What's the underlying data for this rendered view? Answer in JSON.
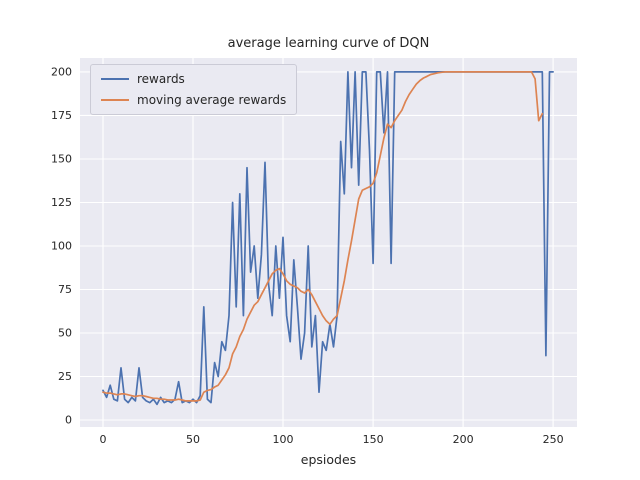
{
  "figure": {
    "title": "average learning curve of DQN",
    "xlabel": "epsiodes",
    "background": "#ffffff",
    "axes_background": "#eaeaf2",
    "grid_color": "#ffffff"
  },
  "legend": {
    "items": [
      {
        "label": "rewards",
        "color": "#4c72b0"
      },
      {
        "label": "moving average rewards",
        "color": "#dd8452"
      }
    ]
  },
  "chart_data": {
    "type": "line",
    "title": "average learning curve of DQN",
    "xlabel": "epsiodes",
    "ylabel": "",
    "grid": true,
    "legend_position": "upper left",
    "x_ticks": [
      0,
      50,
      100,
      150,
      200,
      250
    ],
    "y_ticks": [
      0,
      25,
      50,
      75,
      100,
      125,
      150,
      175,
      200
    ],
    "xlim": [
      -12.8,
      263.3
    ],
    "ylim": [
      -4,
      208
    ],
    "x": [
      0,
      2,
      4,
      6,
      8,
      10,
      12,
      14,
      16,
      18,
      20,
      22,
      24,
      26,
      28,
      30,
      32,
      34,
      36,
      38,
      40,
      42,
      44,
      46,
      48,
      50,
      52,
      54,
      56,
      58,
      60,
      62,
      64,
      66,
      68,
      70,
      72,
      74,
      76,
      78,
      80,
      82,
      84,
      86,
      88,
      90,
      92,
      94,
      96,
      98,
      100,
      102,
      104,
      106,
      108,
      110,
      112,
      114,
      116,
      118,
      120,
      122,
      124,
      126,
      128,
      130,
      132,
      134,
      136,
      138,
      140,
      142,
      144,
      146,
      148,
      150,
      152,
      154,
      156,
      158,
      160,
      162,
      164,
      166,
      168,
      170,
      172,
      174,
      176,
      178,
      180,
      182,
      184,
      186,
      188,
      190,
      192,
      194,
      196,
      198,
      200,
      202,
      204,
      206,
      208,
      210,
      212,
      214,
      216,
      218,
      220,
      222,
      224,
      226,
      228,
      230,
      232,
      234,
      236,
      238,
      240,
      242,
      244,
      246,
      248,
      250
    ],
    "series": [
      {
        "name": "rewards",
        "color": "#4c72b0",
        "values": [
          17,
          13,
          20,
          12,
          11,
          30,
          12,
          10,
          13,
          11,
          30,
          13,
          11,
          10,
          12,
          9,
          13,
          10,
          11,
          10,
          12,
          22,
          10,
          11,
          10,
          12,
          10,
          14,
          65,
          12,
          10,
          33,
          25,
          45,
          40,
          60,
          125,
          65,
          130,
          60,
          145,
          85,
          100,
          70,
          95,
          148,
          78,
          60,
          100,
          70,
          105,
          60,
          45,
          92,
          65,
          35,
          50,
          100,
          42,
          60,
          16,
          45,
          40,
          55,
          42,
          60,
          160,
          130,
          200,
          145,
          200,
          135,
          200,
          200,
          155,
          90,
          200,
          200,
          165,
          200,
          90,
          200,
          200,
          200,
          200,
          200,
          200,
          200,
          200,
          200,
          200,
          200,
          200,
          200,
          200,
          200,
          200,
          200,
          200,
          200,
          200,
          200,
          200,
          200,
          200,
          200,
          200,
          200,
          200,
          200,
          200,
          200,
          200,
          200,
          200,
          200,
          200,
          200,
          200,
          200,
          200,
          200,
          200,
          37,
          200,
          200
        ]
      },
      {
        "name": "moving average rewards",
        "color": "#dd8452",
        "values": [
          16,
          15.5,
          15.5,
          15,
          14.5,
          15,
          15,
          14.5,
          14,
          13.5,
          14,
          14,
          13.5,
          13,
          12.5,
          12.5,
          12,
          12,
          11.5,
          11.5,
          11.5,
          12,
          11.5,
          11,
          11,
          11,
          11,
          11.5,
          16,
          17,
          17.5,
          19,
          20,
          23,
          26,
          30,
          38,
          42,
          48,
          52,
          58,
          62,
          66,
          68,
          72,
          76,
          80,
          84,
          86,
          87,
          84,
          80,
          78,
          77,
          76,
          74,
          73,
          75,
          72,
          68,
          64,
          60,
          57,
          55,
          58,
          60,
          70,
          80,
          92,
          103,
          115,
          127,
          132,
          133,
          134,
          136,
          142,
          152,
          162,
          170,
          168,
          172,
          175,
          178,
          183,
          187,
          190,
          193,
          195,
          196.5,
          197.5,
          198.5,
          199,
          199.5,
          199.8,
          200,
          200,
          200,
          200,
          200,
          200,
          200,
          200,
          200,
          200,
          200,
          200,
          200,
          200,
          200,
          200,
          200,
          200,
          200,
          200,
          200,
          200,
          200,
          200,
          200,
          196,
          172,
          176
        ]
      }
    ]
  }
}
